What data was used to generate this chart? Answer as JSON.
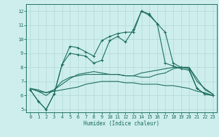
{
  "xlabel": "Humidex (Indice chaleur)",
  "x_ticks": [
    0,
    1,
    2,
    3,
    4,
    5,
    6,
    7,
    8,
    9,
    10,
    11,
    12,
    13,
    14,
    15,
    16,
    17,
    18,
    19,
    20,
    21,
    22,
    23
  ],
  "ylim": [
    4.8,
    12.5
  ],
  "xlim": [
    -0.5,
    23.5
  ],
  "yticks": [
    5,
    6,
    7,
    8,
    9,
    10,
    11,
    12
  ],
  "bg_color": "#cdeeed",
  "line_color": "#1a6b5a",
  "grid_color": "#aed8d5",
  "line1_x": [
    0,
    1,
    2,
    3,
    4,
    5,
    6,
    7,
    8,
    9,
    10,
    11,
    12,
    13,
    14,
    15,
    16,
    17,
    18,
    19,
    20,
    21,
    22,
    23
  ],
  "line1_y": [
    6.4,
    5.6,
    5.0,
    6.1,
    8.2,
    9.5,
    9.4,
    9.1,
    8.8,
    9.9,
    10.2,
    10.4,
    10.5,
    10.5,
    12.0,
    11.8,
    11.1,
    10.5,
    8.3,
    8.0,
    7.9,
    6.5,
    6.1,
    6.0
  ],
  "line2_x": [
    0,
    1,
    2,
    3,
    4,
    5,
    6,
    7,
    8,
    9,
    10,
    11,
    12,
    13,
    14,
    15,
    16,
    17,
    18,
    19,
    20,
    21,
    22,
    23
  ],
  "line2_y": [
    6.4,
    5.6,
    5.0,
    6.1,
    8.2,
    9.0,
    8.9,
    8.8,
    8.3,
    8.5,
    9.9,
    10.2,
    9.8,
    10.7,
    12.0,
    11.7,
    11.1,
    8.3,
    8.1,
    7.9,
    7.8,
    6.5,
    6.1,
    6.0
  ],
  "line3_x": [
    0,
    1,
    2,
    3,
    4,
    5,
    6,
    7,
    8,
    9,
    10,
    11,
    12,
    13,
    14,
    15,
    16,
    17,
    18,
    19,
    20,
    21,
    22,
    23
  ],
  "line3_y": [
    6.5,
    6.3,
    6.0,
    6.4,
    7.0,
    7.3,
    7.4,
    7.5,
    7.5,
    7.5,
    7.5,
    7.5,
    7.4,
    7.4,
    7.3,
    7.3,
    7.5,
    7.6,
    7.9,
    8.0,
    8.0,
    7.2,
    6.4,
    6.1
  ],
  "line4_x": [
    0,
    1,
    2,
    3,
    4,
    5,
    6,
    7,
    8,
    9,
    10,
    11,
    12,
    13,
    14,
    15,
    16,
    17,
    18,
    19,
    20,
    21,
    22,
    23
  ],
  "line4_y": [
    6.5,
    6.4,
    6.2,
    6.4,
    6.8,
    7.2,
    7.5,
    7.6,
    7.7,
    7.6,
    7.5,
    7.5,
    7.4,
    7.4,
    7.6,
    7.7,
    7.8,
    7.9,
    8.0,
    8.0,
    8.0,
    7.0,
    6.5,
    6.1
  ],
  "line5_x": [
    0,
    1,
    2,
    3,
    4,
    5,
    6,
    7,
    8,
    9,
    10,
    11,
    12,
    13,
    14,
    15,
    16,
    17,
    18,
    19,
    20,
    21,
    22,
    23
  ],
  "line5_y": [
    6.5,
    6.3,
    6.2,
    6.3,
    6.4,
    6.5,
    6.6,
    6.8,
    6.9,
    7.0,
    7.0,
    7.0,
    6.9,
    6.9,
    6.8,
    6.8,
    6.8,
    6.7,
    6.7,
    6.6,
    6.5,
    6.3,
    6.2,
    6.0
  ]
}
